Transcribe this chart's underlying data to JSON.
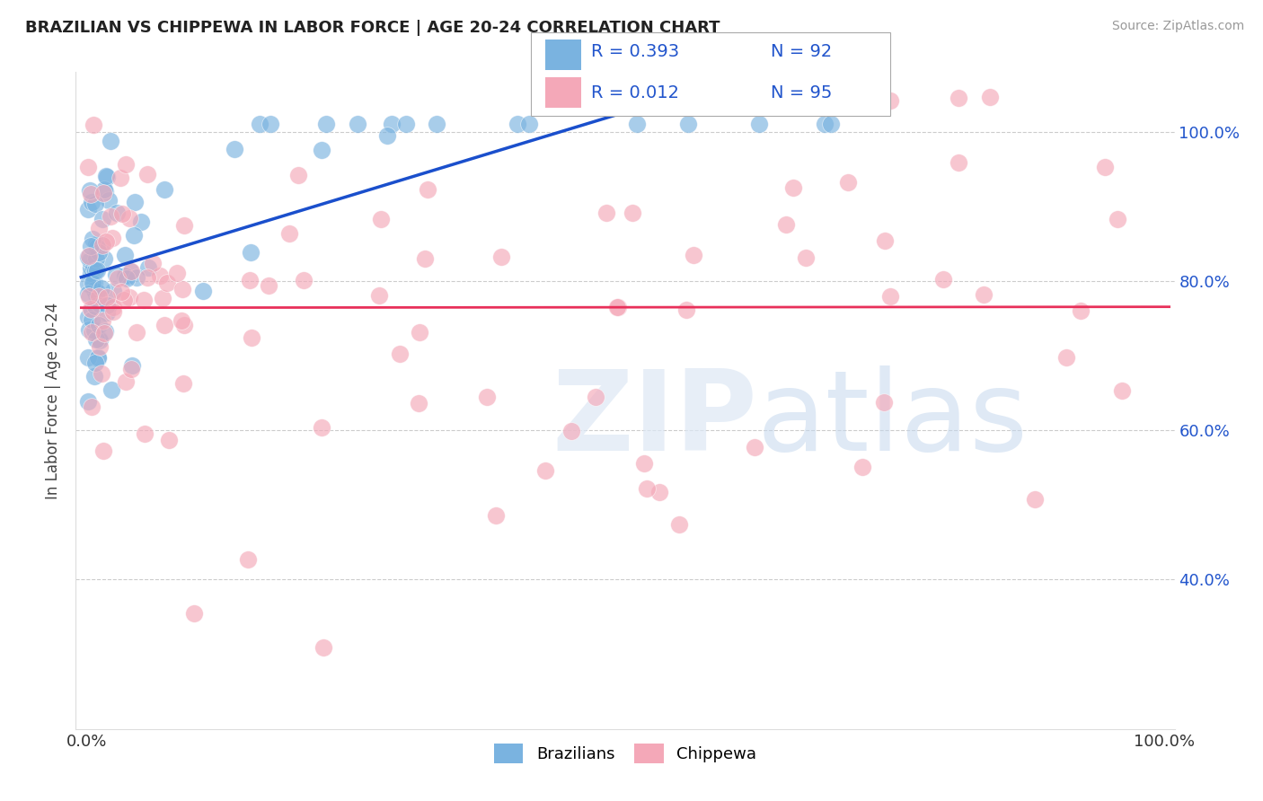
{
  "title": "BRAZILIAN VS CHIPPEWA IN LABOR FORCE | AGE 20-24 CORRELATION CHART",
  "source": "Source: ZipAtlas.com",
  "ylabel": "In Labor Force | Age 20-24",
  "legend_r1": "R = 0.393",
  "legend_n1": "N = 92",
  "legend_r2": "R = 0.012",
  "legend_n2": "N = 95",
  "blue_color": "#7ab3e0",
  "pink_color": "#f4a8b8",
  "trend_blue_color": "#1a4fcc",
  "trend_pink_color": "#e8305a",
  "legend_text_color": "#2255cc",
  "title_color": "#222222",
  "source_color": "#999999",
  "grid_color": "#cccccc",
  "ytick_color": "#2255cc",
  "xtick_color": "#333333"
}
